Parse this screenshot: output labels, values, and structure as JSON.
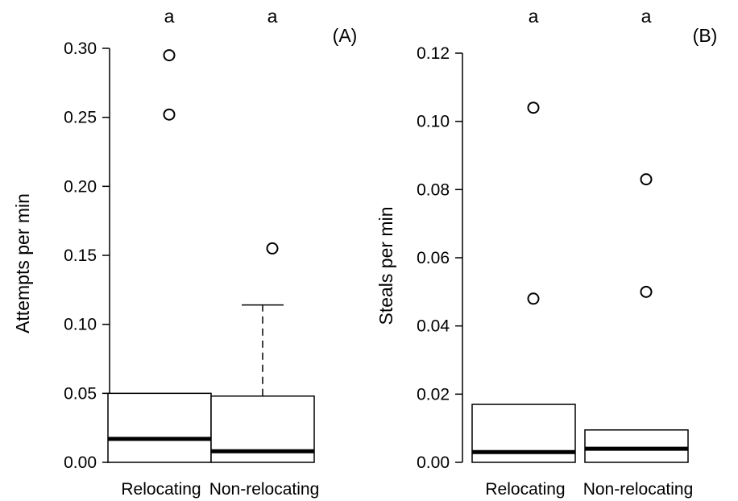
{
  "chart_data": [
    {
      "panel": "(A)",
      "type": "box",
      "ylabel": "Attempts per min",
      "ylim": [
        0,
        0.3
      ],
      "yticks": [
        "0.00",
        "0.05",
        "0.10",
        "0.15",
        "0.20",
        "0.25",
        "0.30"
      ],
      "categories": [
        "Relocating",
        "Non-relocating"
      ],
      "boxes": [
        {
          "category": "Relocating",
          "whisker_low": 0.0,
          "q1": 0.0,
          "median": 0.017,
          "q3": 0.05,
          "whisker_high": 0.05,
          "outliers": [
            0.252,
            0.295
          ],
          "letter": "a"
        },
        {
          "category": "Non-relocating",
          "whisker_low": 0.0,
          "q1": 0.0,
          "median": 0.008,
          "q3": 0.048,
          "whisker_high": 0.114,
          "outliers": [
            0.155
          ],
          "letter": "a"
        }
      ],
      "grid": false
    },
    {
      "panel": "(B)",
      "type": "box",
      "ylabel": "Steals per min",
      "ylim": [
        0,
        0.12
      ],
      "yticks": [
        "0.00",
        "0.02",
        "0.04",
        "0.06",
        "0.08",
        "0.10",
        "0.12"
      ],
      "categories": [
        "Relocating",
        "Non-relocating"
      ],
      "boxes": [
        {
          "category": "Relocating",
          "whisker_low": 0.0,
          "q1": 0.0,
          "median": 0.003,
          "q3": 0.017,
          "whisker_high": 0.017,
          "outliers": [
            0.048,
            0.104
          ],
          "letter": "a"
        },
        {
          "category": "Non-relocating",
          "whisker_low": 0.0,
          "q1": 0.0,
          "median": 0.004,
          "q3": 0.0095,
          "whisker_high": 0.0095,
          "outliers": [
            0.05,
            0.083
          ],
          "letter": "a"
        }
      ],
      "grid": false
    }
  ]
}
